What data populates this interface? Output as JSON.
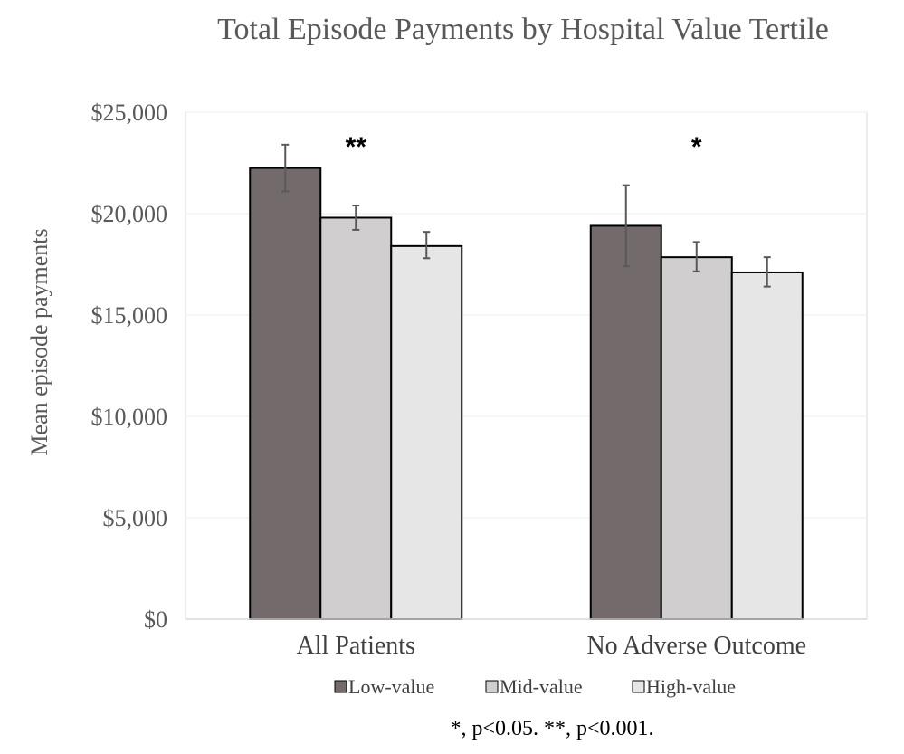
{
  "chart_data": {
    "type": "bar",
    "title": "Total Episode Payments by Hospital Value Tertile",
    "ylabel": "Mean episode payments",
    "xlabel": "",
    "ylim": [
      0,
      25000
    ],
    "y_ticks": [
      0,
      5000,
      10000,
      15000,
      20000,
      25000
    ],
    "y_tick_labels": [
      "$0",
      "$5,000",
      "$10,000",
      "$15,000",
      "$20,000",
      "$25,000"
    ],
    "categories": [
      "All Patients",
      "No Adverse Outcome"
    ],
    "series": [
      {
        "name": "Low-value",
        "color": "#736B6B",
        "values": [
          22250,
          19400
        ],
        "error_low": [
          21100,
          17400
        ],
        "error_high": [
          23400,
          21400
        ]
      },
      {
        "name": "Mid-value",
        "color": "#D0CECE",
        "values": [
          19800,
          17850
        ],
        "error_low": [
          19200,
          17150
        ],
        "error_high": [
          20400,
          18600
        ]
      },
      {
        "name": "High-value",
        "color": "#E7E6E6",
        "values": [
          18400,
          17100
        ],
        "error_low": [
          17800,
          16400
        ],
        "error_high": [
          19100,
          17850
        ]
      }
    ],
    "significance": [
      "**",
      "*"
    ],
    "legend_position": "bottom",
    "grid": true,
    "footnote": "*, p<0.05. **, p<0.001."
  }
}
